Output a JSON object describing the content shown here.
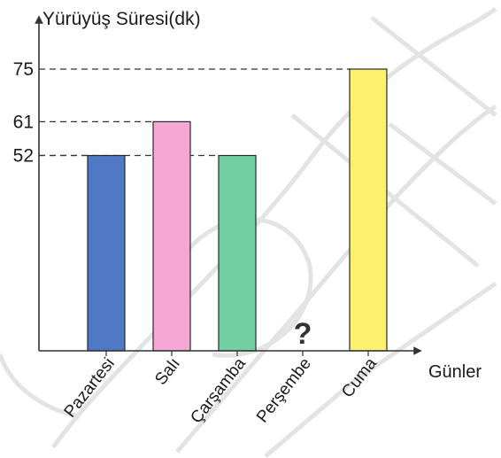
{
  "chart_data": {
    "type": "bar",
    "ylabel": "Yürüyüş Süresi(dk)",
    "xlabel": "Günler",
    "categories": [
      "Pazartesi",
      "Salı",
      "Çarşamba",
      "Perşembe",
      "Cuma"
    ],
    "values": [
      52,
      61,
      52,
      null,
      75
    ],
    "unknown_marker": "?",
    "yticks": [
      52,
      61,
      75
    ],
    "ylim": [
      0,
      75
    ],
    "grid": "dashed guide lines at tick values",
    "colors": [
      "#4f79c4",
      "#f5a6d2",
      "#72cfa2",
      null,
      "#fbf16c"
    ]
  }
}
